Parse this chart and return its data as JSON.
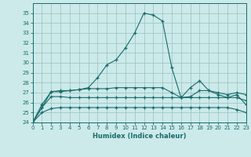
{
  "xlabel": "Humidex (Indice chaleur)",
  "hours": [
    0,
    1,
    2,
    3,
    4,
    5,
    6,
    7,
    8,
    9,
    10,
    11,
    12,
    13,
    14,
    15,
    16,
    17,
    18,
    19,
    20,
    21,
    22,
    23
  ],
  "line1": [
    24.0,
    25.8,
    27.1,
    27.2,
    27.2,
    27.3,
    27.5,
    28.5,
    29.8,
    30.3,
    31.5,
    33.0,
    35.0,
    34.8,
    34.2,
    29.5,
    26.5,
    27.5,
    28.2,
    27.2,
    26.8,
    26.5,
    26.8,
    25.8
  ],
  "line2": [
    24.0,
    25.5,
    27.1,
    27.1,
    27.2,
    27.3,
    27.4,
    27.4,
    27.4,
    27.5,
    27.5,
    27.5,
    27.5,
    27.5,
    27.5,
    27.0,
    26.5,
    26.6,
    27.2,
    27.2,
    27.0,
    26.8,
    27.0,
    26.8
  ],
  "line3": [
    24.0,
    25.5,
    26.6,
    26.6,
    26.5,
    26.5,
    26.5,
    26.5,
    26.5,
    26.5,
    26.5,
    26.5,
    26.5,
    26.5,
    26.5,
    26.5,
    26.5,
    26.5,
    26.5,
    26.5,
    26.5,
    26.5,
    26.5,
    26.2
  ],
  "line4": [
    24.0,
    25.0,
    25.4,
    25.5,
    25.5,
    25.5,
    25.5,
    25.5,
    25.5,
    25.5,
    25.5,
    25.5,
    25.5,
    25.5,
    25.5,
    25.5,
    25.5,
    25.5,
    25.5,
    25.5,
    25.5,
    25.5,
    25.3,
    25.0
  ],
  "line_color": "#1a6b6b",
  "bg_color": "#cceaea",
  "grid_color": "#9bbfbf",
  "ylim": [
    24,
    36
  ],
  "yticks": [
    24,
    25,
    26,
    27,
    28,
    29,
    30,
    31,
    32,
    33,
    34,
    35
  ],
  "xlim": [
    0,
    23
  ],
  "marker": "+"
}
